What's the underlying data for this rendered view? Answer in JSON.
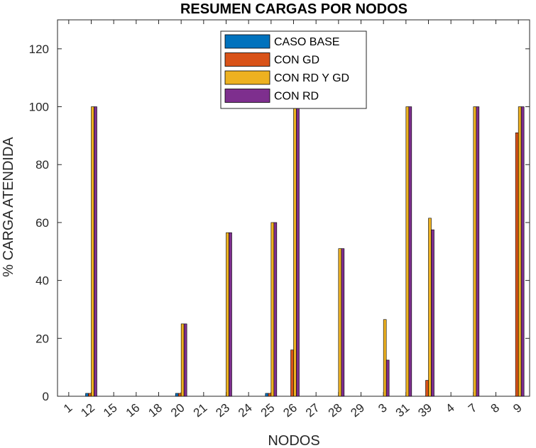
{
  "chart_data": {
    "type": "bar",
    "title": "RESUMEN CARGAS POR NODOS",
    "xlabel": "NODOS",
    "ylabel": "% CARGA ATENDIDA",
    "ylim": [
      0,
      130
    ],
    "yticks": [
      0,
      20,
      40,
      60,
      80,
      100,
      120
    ],
    "grid": false,
    "legend_position": "top-center",
    "categories": [
      "1",
      "12",
      "15",
      "16",
      "18",
      "20",
      "21",
      "23",
      "24",
      "25",
      "26",
      "27",
      "28",
      "29",
      "3",
      "31",
      "39",
      "4",
      "7",
      "8",
      "9"
    ],
    "series": [
      {
        "name": "CASO BASE",
        "color": "#0072BD",
        "values": [
          0,
          1,
          0,
          0,
          0,
          1,
          0,
          0,
          0,
          1,
          0,
          0,
          0,
          0,
          0,
          0,
          0,
          0,
          0,
          0,
          0
        ]
      },
      {
        "name": "CON GD",
        "color": "#D95319",
        "values": [
          0,
          1,
          0,
          0,
          0,
          1,
          0,
          0,
          0,
          1,
          16,
          0,
          0,
          0,
          0,
          0,
          5.5,
          0,
          0,
          0,
          91
        ]
      },
      {
        "name": "CON RD Y GD",
        "color": "#EDB120",
        "values": [
          0,
          100,
          0,
          0,
          0,
          25,
          0,
          56.5,
          0,
          60,
          100,
          0,
          51,
          0,
          26.5,
          100,
          61.5,
          0,
          100,
          0,
          100
        ]
      },
      {
        "name": "CON RD",
        "color": "#7E2F8E",
        "values": [
          0,
          100,
          0,
          0,
          0,
          25,
          0,
          56.5,
          0,
          60,
          100,
          0,
          51,
          0,
          12.5,
          100,
          57.5,
          0,
          100,
          0,
          100
        ]
      }
    ]
  }
}
